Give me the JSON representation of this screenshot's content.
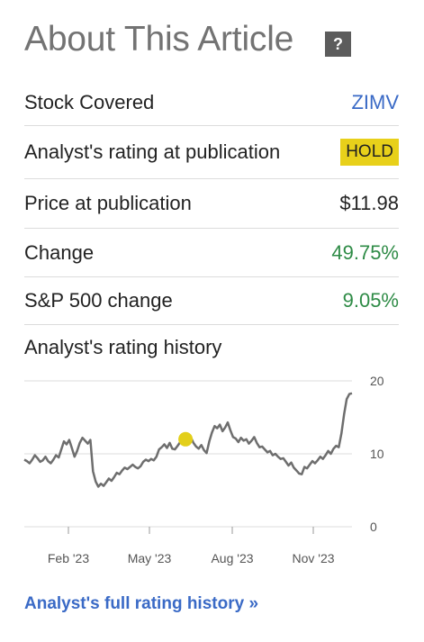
{
  "header": {
    "title": "About This Article",
    "help_symbol": "?"
  },
  "details": {
    "stock_label": "Stock Covered",
    "stock_value": "ZIMV",
    "rating_label": "Analyst's rating at publication",
    "rating_value": "HOLD",
    "price_label": "Price at publication",
    "price_value": "$11.98",
    "change_label": "Change",
    "change_value": "49.75%",
    "sp_label": "S&P 500 change",
    "sp_value": "9.05%"
  },
  "history": {
    "label": "Analyst's rating history",
    "footer_link": "Analyst's full rating history »"
  },
  "colors": {
    "link": "#3a6ac6",
    "positive": "#2e8b46",
    "hold_badge": "#e8d01a",
    "line": "#6e6e6e",
    "marker": "#e3cf1a"
  },
  "chart_data": {
    "type": "line",
    "x_ticks": [
      "Feb '23",
      "May '23",
      "Aug '23",
      "Nov '23"
    ],
    "y_ticks": [
      "20",
      "10",
      "0"
    ],
    "ylim": [
      0,
      20
    ],
    "grid": true,
    "series": [
      {
        "values": [
          9.2,
          9.0,
          8.7,
          9.2,
          9.8,
          9.4,
          8.9,
          9.1,
          9.6,
          9.0,
          8.7,
          9.2,
          9.8,
          9.5,
          10.6,
          11.7,
          11.3,
          11.9,
          10.8,
          9.6,
          10.4,
          11.5,
          12.2,
          11.8,
          11.4,
          11.9,
          7.6,
          6.2,
          5.5,
          5.9,
          5.6,
          6.1,
          6.6,
          6.3,
          6.8,
          7.4,
          7.2,
          7.7,
          8.1,
          7.9,
          8.2,
          8.5,
          8.2,
          8.0,
          8.3,
          8.9,
          9.2,
          9.0,
          9.3,
          9.1,
          9.6,
          10.6,
          10.9,
          11.3,
          10.8,
          11.5,
          10.7,
          10.6,
          11.1,
          11.6,
          12.0,
          11.4,
          11.9,
          12.3,
          11.5,
          11.0,
          10.7,
          11.2,
          10.5,
          10.1,
          11.7,
          12.9,
          13.8,
          13.5,
          14.0,
          13.1,
          13.6,
          14.3,
          13.2,
          12.3,
          12.1,
          11.6,
          12.2,
          11.8,
          12.0,
          11.4,
          11.8,
          12.3,
          11.5,
          10.9,
          11.0,
          10.6,
          10.2,
          10.4,
          9.8,
          10.0,
          9.6,
          9.3,
          9.4,
          8.9,
          8.4,
          8.8,
          8.1,
          7.7,
          7.3,
          7.2,
          8.2,
          8.0,
          8.5,
          9.0,
          8.7,
          9.1,
          9.6,
          9.3,
          9.8,
          10.4,
          10.0,
          10.7,
          11.1,
          10.9,
          12.8,
          15.4,
          17.5,
          18.2,
          18.3
        ]
      }
    ],
    "marker_value": 12.0
  }
}
